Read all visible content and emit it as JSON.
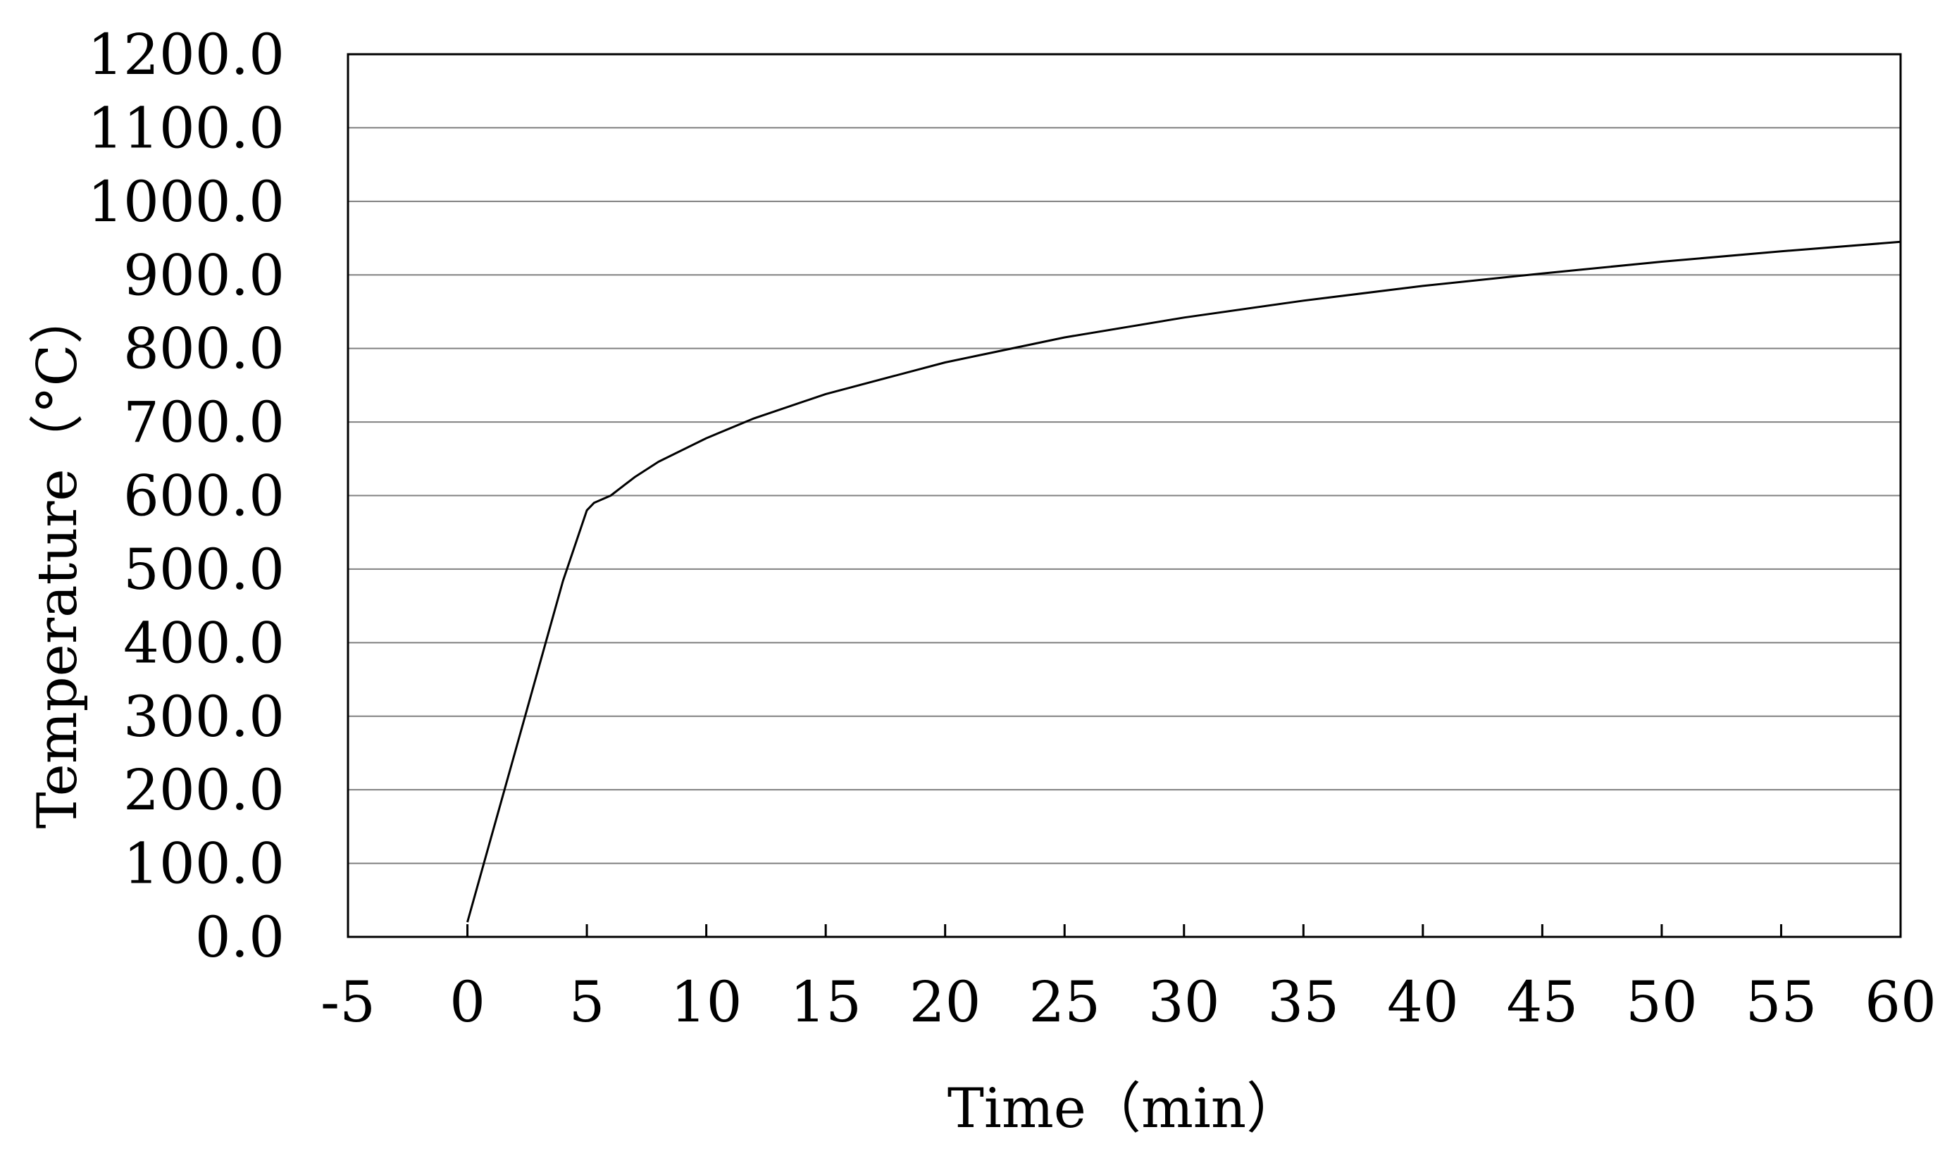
{
  "chart_data": {
    "type": "line",
    "title": "",
    "xlabel": "Time（min）",
    "ylabel": "Temperature（°C）",
    "xlim": [
      -5,
      60
    ],
    "ylim": [
      0,
      1200
    ],
    "x_ticks": [
      "-5",
      "0",
      "5",
      "10",
      "15",
      "20",
      "25",
      "30",
      "35",
      "40",
      "45",
      "50",
      "55",
      "60"
    ],
    "y_ticks": [
      "0.0",
      "100.0",
      "200.0",
      "300.0",
      "400.0",
      "500.0",
      "600.0",
      "700.0",
      "800.0",
      "900.0",
      "1000.0",
      "1100.0",
      "1200.0"
    ],
    "grid": "horizontal",
    "legend": "none",
    "series": [
      {
        "x": [
          0,
          1,
          2,
          3,
          4,
          5,
          5.3,
          6,
          7,
          8,
          10,
          12,
          15,
          20,
          25,
          30,
          35,
          40,
          45,
          50,
          55,
          60
        ],
        "y": [
          20,
          136,
          252,
          368,
          484,
          580,
          590,
          600,
          625,
          646,
          678,
          705,
          738,
          781,
          815,
          842,
          865,
          885,
          902,
          918,
          932,
          945
        ]
      }
    ],
    "colors": {
      "line": "#000000",
      "grid": "#808080",
      "axis": "#000000"
    }
  }
}
